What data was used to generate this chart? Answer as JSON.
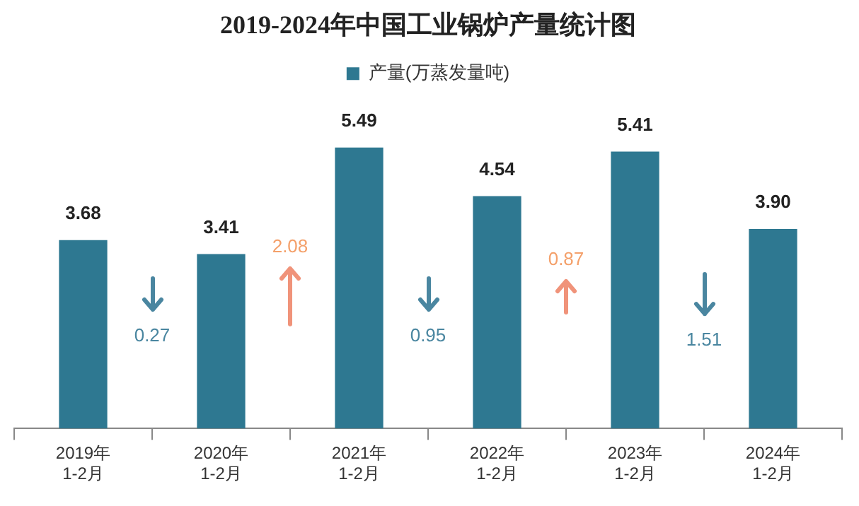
{
  "chart_data": {
    "type": "bar",
    "title": "2019-2024年中国工业锅炉产量统计图",
    "categories": [
      "2019年\n1-2月",
      "2020年\n1-2月",
      "2021年\n1-2月",
      "2022年\n1-2月",
      "2023年\n1-2月",
      "2024年\n1-2月"
    ],
    "series": [
      {
        "name": "产量(万蒸发量吨)",
        "color": "#2e7891",
        "values": [
          3.68,
          3.41,
          5.49,
          4.54,
          5.41,
          3.9
        ],
        "value_labels": [
          "3.68",
          "3.41",
          "5.49",
          "4.54",
          "5.41",
          "3.90"
        ]
      }
    ],
    "legend": "top",
    "grid": false,
    "annotations": [
      "0.27",
      "2.08",
      "0.95",
      "0.87",
      "1.51"
    ]
  }
}
